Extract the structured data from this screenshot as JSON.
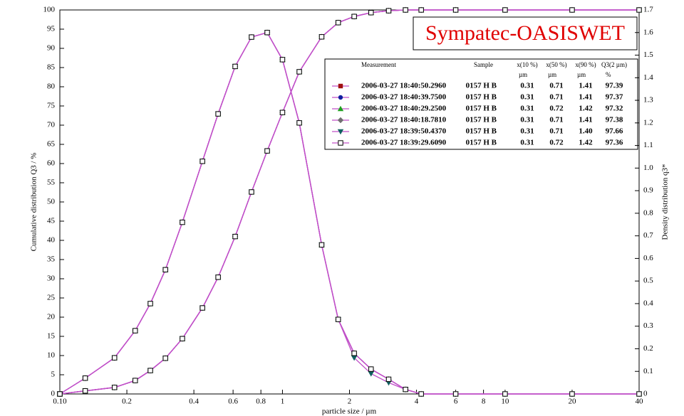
{
  "chart_data": {
    "type": "line",
    "title": "Sympatec-OASISWET",
    "xlabel": "particle size / µm",
    "ylabel": "Cumulative distribution Q3 / %",
    "y2label": "Density distribution q3*",
    "xscale": "log",
    "xlim": [
      0.1,
      40
    ],
    "ylim": [
      0,
      100
    ],
    "y2lim": [
      0,
      1.7
    ],
    "xticks": [
      {
        "value": 0.1,
        "label": "0.10"
      },
      0.2,
      0.4,
      0.6,
      0.8,
      1,
      2,
      4,
      6,
      8,
      10,
      20,
      40
    ],
    "yticks": [
      0,
      5,
      10,
      15,
      20,
      25,
      30,
      35,
      40,
      45,
      50,
      55,
      60,
      65,
      70,
      75,
      80,
      85,
      90,
      95,
      100
    ],
    "y2ticks": [
      0,
      0.1,
      0.2,
      0.3,
      0.4,
      0.5,
      0.6,
      0.7,
      0.8,
      0.9,
      {
        "value": 1,
        "label": "1.0"
      },
      1.1,
      1.2,
      1.3,
      1.4,
      1.5,
      1.6,
      1.7
    ],
    "line_color": "#c050c8",
    "legend": {
      "header": [
        "Measurement",
        "Sample",
        "x(10 %)",
        "x(50 %)",
        "x(90 %)",
        "Q3(2 µm)"
      ],
      "units": [
        "µm",
        "µm",
        "µm",
        "%"
      ]
    },
    "x": [
      0.1,
      0.13,
      0.176,
      0.218,
      0.255,
      0.298,
      0.355,
      0.437,
      0.514,
      0.613,
      0.726,
      0.854,
      1,
      1.19,
      1.5,
      1.78,
      2.1,
      2.5,
      3,
      3.57,
      4.2,
      6,
      10,
      20,
      40
    ],
    "series": [
      {
        "name": "2006-03-27 18:40:50.2960",
        "sample": "0157 H B",
        "x10": "0.31",
        "x50": "0.71",
        "x90": "1.41",
        "q3": "97.39",
        "color": "#a01010",
        "marker": "square",
        "values": [
          0,
          0.8,
          1.7,
          3.5,
          6.1,
          9.3,
          14.4,
          22.4,
          30.4,
          41,
          52.6,
          63.3,
          73.3,
          83.9,
          93,
          96.7,
          98.3,
          99.3,
          99.8,
          100,
          100,
          100,
          100,
          100,
          100
        ],
        "density": [
          0,
          0.07,
          0.16,
          0.28,
          0.4,
          0.55,
          0.76,
          1.03,
          1.24,
          1.45,
          1.58,
          1.6,
          1.48,
          1.2,
          0.66,
          0.33,
          0.18,
          0.11,
          0.065,
          0.02,
          0,
          0,
          0,
          0,
          0
        ]
      },
      {
        "name": "2006-03-27 18:40:39.7500",
        "sample": "0157 H B",
        "x10": "0.31",
        "x50": "0.71",
        "x90": "1.41",
        "q3": "97.37",
        "color": "#1020a0",
        "marker": "circle",
        "values": [
          0,
          0.8,
          1.7,
          3.5,
          6.1,
          9.3,
          14.4,
          22.4,
          30.4,
          41,
          52.6,
          63.3,
          73.3,
          83.9,
          93,
          96.7,
          98.3,
          99.3,
          99.8,
          100,
          100,
          100,
          100,
          100,
          100
        ],
        "density": [
          0,
          0.07,
          0.16,
          0.28,
          0.4,
          0.55,
          0.76,
          1.03,
          1.24,
          1.45,
          1.58,
          1.6,
          1.48,
          1.2,
          0.66,
          0.33,
          0.18,
          0.11,
          0.065,
          0.02,
          0,
          0,
          0,
          0,
          0
        ]
      },
      {
        "name": "2006-03-27 18:40:29.2500",
        "sample": "0157 H B",
        "x10": "0.31",
        "x50": "0.72",
        "x90": "1.42",
        "q3": "97.32",
        "color": "#20a020",
        "marker": "triangle",
        "values": [
          0,
          0.8,
          1.7,
          3.5,
          6.1,
          9.3,
          14.4,
          22.4,
          30.4,
          41,
          52.6,
          63.3,
          73.3,
          83.9,
          93,
          96.7,
          98.3,
          99.3,
          99.8,
          100,
          100,
          100,
          100,
          100,
          100
        ],
        "density": [
          0,
          0.07,
          0.16,
          0.28,
          0.4,
          0.55,
          0.76,
          1.03,
          1.24,
          1.45,
          1.58,
          1.6,
          1.48,
          1.2,
          0.66,
          0.33,
          0.18,
          0.11,
          0.065,
          0.02,
          0,
          0,
          0,
          0,
          0
        ]
      },
      {
        "name": "2006-03-27 18:40:18.7810",
        "sample": "0157 H B",
        "x10": "0.31",
        "x50": "0.71",
        "x90": "1.41",
        "q3": "97.38",
        "color": "#707070",
        "marker": "diamond",
        "values": [
          0,
          0.8,
          1.7,
          3.5,
          6.1,
          9.3,
          14.4,
          22.4,
          30.4,
          41,
          52.6,
          63.3,
          73.3,
          83.9,
          93,
          96.7,
          98.3,
          99.3,
          99.8,
          100,
          100,
          100,
          100,
          100,
          100
        ],
        "density": [
          0,
          0.07,
          0.16,
          0.28,
          0.4,
          0.55,
          0.76,
          1.03,
          1.24,
          1.45,
          1.58,
          1.6,
          1.48,
          1.2,
          0.66,
          0.33,
          0.18,
          0.11,
          0.065,
          0.02,
          0,
          0,
          0,
          0,
          0
        ]
      },
      {
        "name": "2006-03-27 18:39:50.4370",
        "sample": "0157 H B",
        "x10": "0.31",
        "x50": "0.71",
        "x90": "1.40",
        "q3": "97.66",
        "color": "#106060",
        "marker": "triangle-down",
        "values": [
          0,
          0.8,
          1.7,
          3.5,
          6.1,
          9.3,
          14.4,
          22.4,
          30.4,
          41,
          52.6,
          63.3,
          73.3,
          83.9,
          93,
          96.7,
          98.3,
          99.3,
          99.8,
          100,
          100,
          100,
          100,
          100,
          100
        ],
        "density": [
          0,
          0.07,
          0.16,
          0.28,
          0.4,
          0.55,
          0.76,
          1.03,
          1.24,
          1.45,
          1.58,
          1.6,
          1.48,
          1.2,
          0.66,
          0.33,
          0.16,
          0.09,
          0.05,
          0.02,
          0,
          0,
          0,
          0,
          0
        ]
      },
      {
        "name": "2006-03-27 18:39:29.6090",
        "sample": "0157 H B",
        "x10": "0.31",
        "x50": "0.72",
        "x90": "1.42",
        "q3": "97.36",
        "color": "#802080",
        "marker": "open-square",
        "values": [
          0,
          0.8,
          1.7,
          3.5,
          6.1,
          9.3,
          14.4,
          22.4,
          30.4,
          41,
          52.6,
          63.3,
          73.3,
          83.9,
          93,
          96.7,
          98.3,
          99.3,
          99.8,
          100,
          100,
          100,
          100,
          100,
          100
        ],
        "density": [
          0,
          0.07,
          0.16,
          0.28,
          0.4,
          0.55,
          0.76,
          1.03,
          1.24,
          1.45,
          1.58,
          1.6,
          1.48,
          1.2,
          0.66,
          0.33,
          0.18,
          0.11,
          0.065,
          0.02,
          0,
          0,
          0,
          0,
          0
        ]
      }
    ]
  }
}
